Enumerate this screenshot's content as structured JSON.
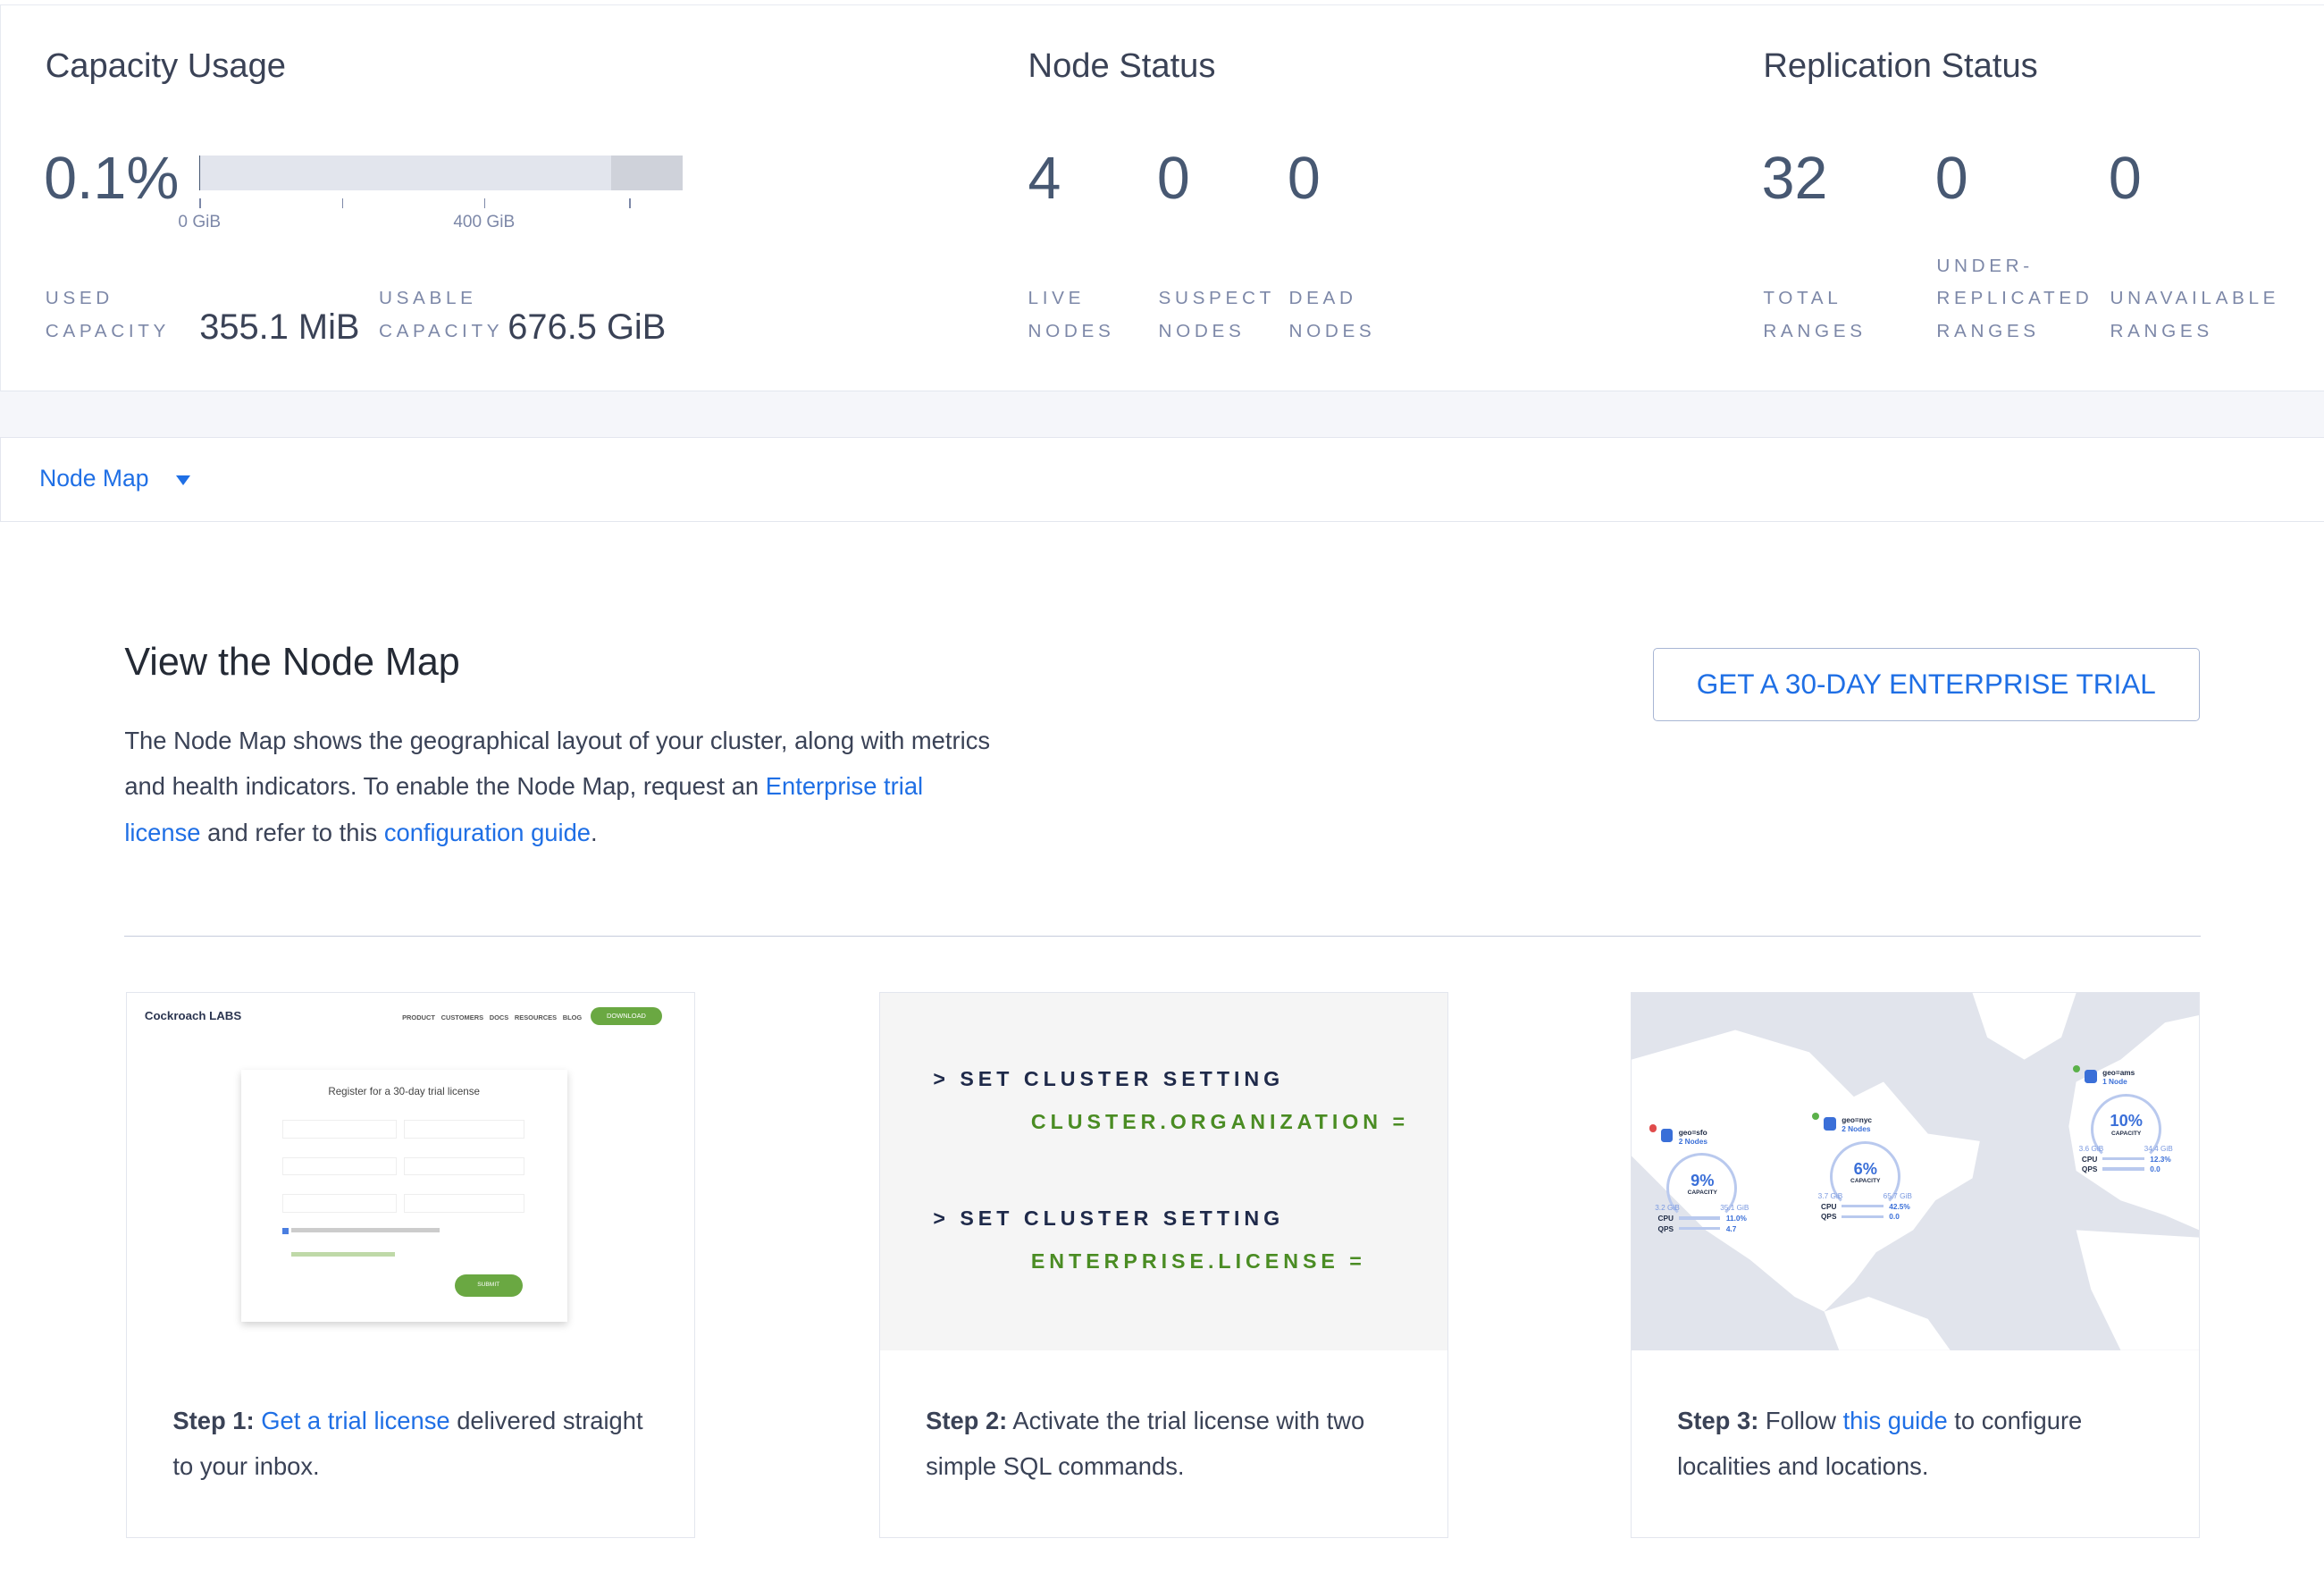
{
  "capacity": {
    "title": "Capacity Usage",
    "percent": "0.1%",
    "percent_value": 0.1,
    "ticks": [
      "0 GiB",
      "400 GiB"
    ],
    "used_label_1": "USED",
    "used_label_2": "CAPACITY",
    "used_value": "355.1 MiB",
    "usable_label_1": "USABLE",
    "usable_label_2": "CAPACITY",
    "usable_value": "676.5 GiB"
  },
  "node_status": {
    "title": "Node Status",
    "items": [
      {
        "value": "4",
        "label_1": "LIVE",
        "label_2": "NODES"
      },
      {
        "value": "0",
        "label_1": "SUSPECT",
        "label_2": "NODES"
      },
      {
        "value": "0",
        "label_1": "DEAD",
        "label_2": "NODES"
      }
    ]
  },
  "replication": {
    "title": "Replication Status",
    "items": [
      {
        "value": "32",
        "label_1": "TOTAL",
        "label_2": "RANGES"
      },
      {
        "value": "0",
        "label_0": "UNDER-",
        "label_1": "REPLICATED",
        "label_2": "RANGES"
      },
      {
        "value": "0",
        "label_1": "UNAVAILABLE",
        "label_2": "RANGES"
      }
    ]
  },
  "nav": {
    "dropdown_label": "Node Map"
  },
  "main": {
    "title": "View the Node Map",
    "para_1": "The Node Map shows the geographical layout of your cluster, along with metrics and health indicators. To enable the Node Map, request an ",
    "para_link_1": "Enterprise trial license",
    "para_2": " and refer to this ",
    "para_link_2": "configuration guide",
    "para_3": ".",
    "trial_button": "GET A 30-DAY ENTERPRISE TRIAL"
  },
  "steps": [
    {
      "bold": "Step 1:",
      "link": "Get a trial license",
      "text": " delivered straight to your inbox."
    },
    {
      "bold": "Step 2:",
      "text": " Activate the trial license with two simple SQL commands."
    },
    {
      "bold": "Step 3:",
      "pre": " Follow ",
      "link": "this guide",
      "text": " to configure localities and locations."
    }
  ],
  "step1_image": {
    "logo": "Cockroach LABS",
    "nav": [
      "PRODUCT",
      "CUSTOMERS",
      "DOCS",
      "RESOURCES",
      "BLOG"
    ],
    "download": "DOWNLOAD",
    "form_title": "Register for a 30-day trial license",
    "submit": "SUBMIT"
  },
  "step2_image": {
    "lines": [
      {
        "cmd": "> SET CLUSTER SETTING",
        "arg": "CLUSTER.ORGANIZATION ="
      },
      {
        "cmd": "> SET CLUSTER SETTING",
        "arg": "ENTERPRISE.LICENSE ="
      }
    ]
  },
  "step3_image": {
    "localities": [
      {
        "name": "geo=sfo",
        "nodes": "2 Nodes",
        "capacity": "9%",
        "used": "3.2 GiB",
        "total": "35.1 GiB",
        "cpu": "11.0%",
        "qps": "4.7",
        "status": "alert"
      },
      {
        "name": "geo=nyc",
        "nodes": "2 Nodes",
        "capacity": "6%",
        "used": "3.7 GiB",
        "total": "65.7 GiB",
        "cpu": "42.5%",
        "qps": "0.0",
        "status": "ok"
      },
      {
        "name": "geo=ams",
        "nodes": "1 Node",
        "capacity": "10%",
        "used": "3.6 GiB",
        "total": "34.4 GiB",
        "cpu": "12.3%",
        "qps": "0.0",
        "status": "ok"
      }
    ],
    "capacity_label": "CAPACITY",
    "cpu_label": "CPU",
    "qps_label": "QPS"
  },
  "colors": {
    "accent": "#1f6fe5",
    "text": "#3a4256",
    "muted": "#7d88a8",
    "green": "#4a8c23"
  }
}
